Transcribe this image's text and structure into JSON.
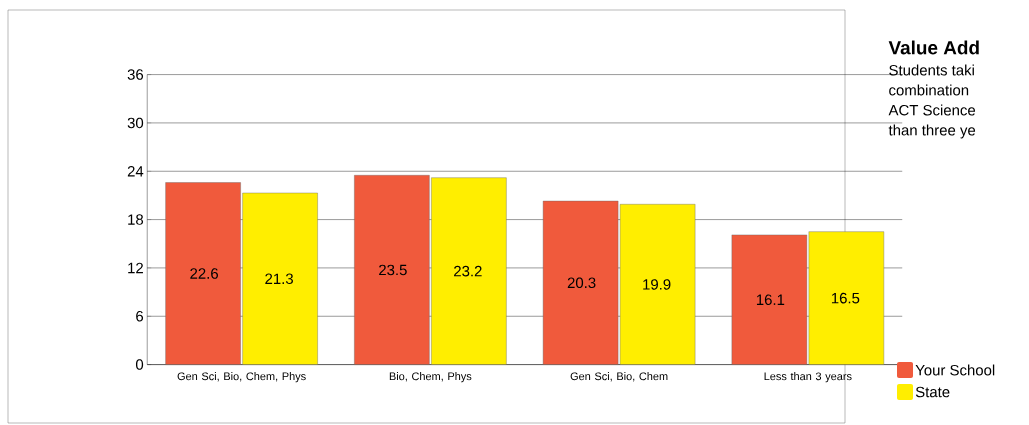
{
  "chart_data": {
    "type": "bar",
    "title": "Value Add",
    "annotations": [
      "Students taki",
      "combination",
      "ACT Science",
      "than three ye"
    ],
    "categories": [
      "Gen Sci, Bio, Chem, Phys",
      "Bio, Chem, Phys",
      "Gen Sci, Bio, Chem",
      "Less than 3 years"
    ],
    "series": [
      {
        "name": "Your School",
        "color": "#f05a3c",
        "values": [
          22.6,
          23.5,
          20.3,
          16.1
        ]
      },
      {
        "name": "State",
        "color": "#ffee00",
        "values": [
          21.3,
          23.2,
          19.9,
          16.5
        ]
      }
    ],
    "ylim": [
      0,
      36
    ],
    "yticks": [
      0,
      6,
      12,
      18,
      24,
      30,
      36
    ],
    "grid": "y",
    "legend": "bottom right",
    "data_labels": true
  }
}
